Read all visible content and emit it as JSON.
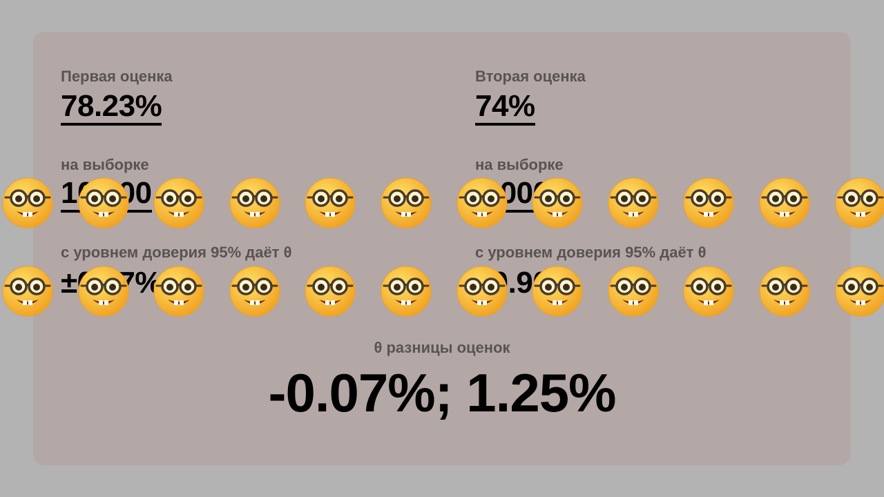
{
  "first_estimate": {
    "title": "Первая оценка",
    "value": "78.23%",
    "sample_label": "на выборке",
    "sample_value": "10 000",
    "confidence_label": "с уровнем доверия 95% даёт θ",
    "confidence_value": "±0.57%"
  },
  "second_estimate": {
    "title": "Вторая оценка",
    "value": "74%",
    "sample_label": "на выборке",
    "sample_value": "3 000",
    "confidence_label": "с уровнем доверия 95% даёт θ",
    "confidence_value": "±0.90%"
  },
  "difference": {
    "label": "θ разницы оценок",
    "value": "-0.07%; 1.25%"
  },
  "overlay": {
    "icon": "nerd-face-emoji-icon",
    "rows": 2,
    "per_row": 12,
    "colors": {
      "face": "#ffcc33",
      "face_edge": "#f0a020"
    }
  }
}
